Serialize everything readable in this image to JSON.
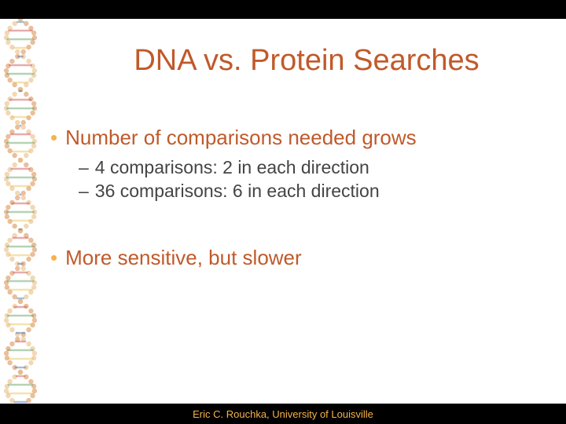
{
  "title": {
    "text": "DNA vs. Protein Searches",
    "color": "#c05a2a",
    "fontsize": 38
  },
  "bullets": [
    {
      "level": 1,
      "text": "Number of comparisons needed grows",
      "color": "#c05a2a",
      "bullet_color": "#f7b24a"
    },
    {
      "level": 2,
      "text": "4 comparisons: 2 in each direction",
      "color": "#444444"
    },
    {
      "level": 2,
      "text": "36 comparisons: 6 in each direction",
      "color": "#444444"
    },
    {
      "level": 0
    },
    {
      "level": 1,
      "text": "More sensitive, but slower",
      "color": "#c05a2a",
      "bullet_color": "#f7b24a"
    }
  ],
  "footer": {
    "text": "Eric C. Rouchka, University of Louisville",
    "color": "#f7b24a",
    "background": "#000000"
  },
  "dna_decoration": {
    "backbone_colors": [
      "#d98a4a",
      "#e8b878"
    ],
    "base_colors": [
      "#3a6fb0",
      "#c94a4a",
      "#5aa05a",
      "#e8c050"
    ],
    "bg": "#ffffff"
  }
}
